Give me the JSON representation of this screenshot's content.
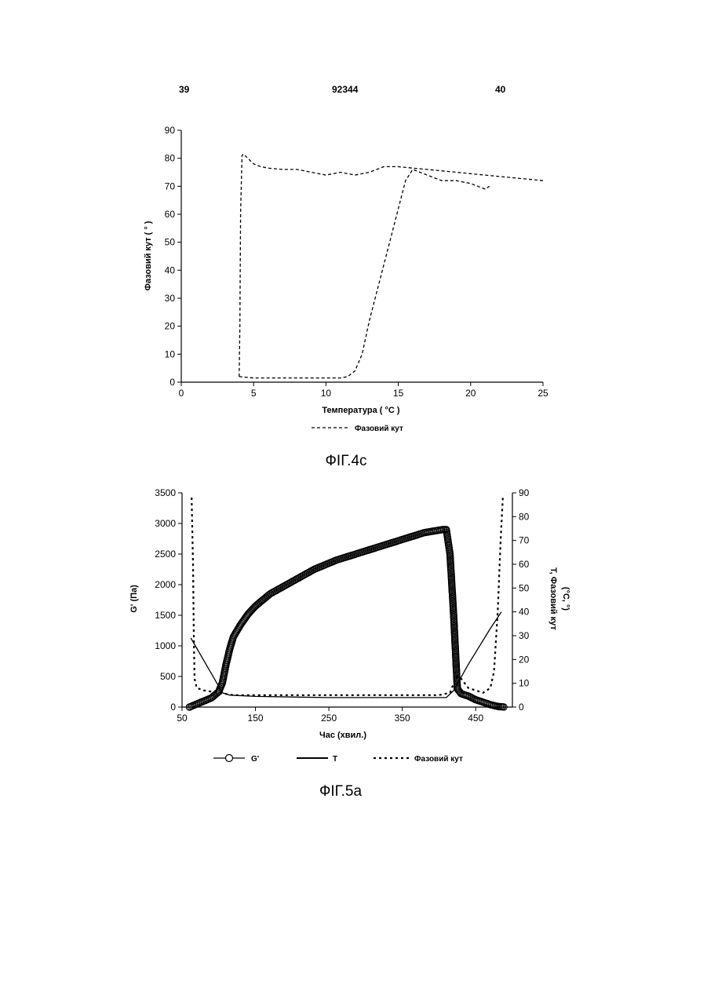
{
  "header": {
    "page_left": "39",
    "patent_number": "92344",
    "page_right": "40"
  },
  "figures": [
    {
      "caption": "ФІГ.4с",
      "legend": [
        "Фазовий кут"
      ],
      "xlabel": "Температура",
      "xunit": "°C",
      "ylabel": "Фазовий кут",
      "yunit": "°"
    },
    {
      "caption": "ФІГ.5а",
      "legend": [
        "G'",
        "T",
        "Фазовий кут"
      ],
      "xlabel": "Час (хвил.)",
      "ylabel_left": "G' (Па)",
      "ylabel_right_1": "T, Фазовий кут",
      "ylabel_right_2": "(°C, °)"
    }
  ],
  "chart_data": [
    {
      "type": "line",
      "xlim": [
        0,
        25
      ],
      "ylim": [
        0,
        90
      ],
      "xticks": [
        0,
        5,
        10,
        15,
        20,
        25
      ],
      "yticks": [
        0,
        10,
        20,
        30,
        40,
        50,
        60,
        70,
        80,
        90
      ],
      "grid": false,
      "legend_position": "bottom",
      "series": [
        {
          "name": "Фазовий кут",
          "style": "dashed",
          "x": [
            4,
            4.05,
            4.1,
            4.2,
            4.3,
            4.6,
            5,
            5.5,
            6,
            7,
            8,
            9,
            10,
            11,
            12,
            13,
            14,
            15,
            16,
            17,
            18,
            19,
            20,
            21,
            22,
            23,
            24,
            25
          ],
          "y": [
            2,
            20,
            60,
            81,
            81.5,
            80,
            78,
            77,
            76.5,
            76,
            76,
            75,
            74,
            75,
            74,
            75,
            77,
            77,
            76.5,
            76,
            75.5,
            75,
            74.5,
            74,
            73.5,
            73,
            72.5,
            72
          ]
        },
        {
          "name": "",
          "style": "dashed",
          "x": [
            4,
            5,
            6,
            8,
            10,
            11,
            11.5,
            12,
            12.5,
            13,
            14,
            15,
            15.5,
            16,
            16.5,
            17,
            18,
            19,
            20,
            21,
            21.3
          ],
          "y": [
            2,
            1.5,
            1.5,
            1.5,
            1.5,
            1.5,
            2,
            4,
            10,
            22,
            42,
            62,
            72,
            76,
            75,
            74,
            72,
            72,
            71,
            69,
            70
          ]
        }
      ]
    },
    {
      "type": "line",
      "xlim": [
        50,
        500
      ],
      "ylim_left": [
        0,
        3500
      ],
      "ylim_right": [
        0,
        90
      ],
      "xticks": [
        50,
        150,
        250,
        350,
        450
      ],
      "yticks_left": [
        0,
        500,
        1000,
        1500,
        2000,
        2500,
        3000,
        3500
      ],
      "yticks_right": [
        0,
        10,
        20,
        30,
        40,
        50,
        60,
        70,
        80,
        90
      ],
      "grid": false,
      "legend_position": "bottom",
      "series": [
        {
          "name": "G'",
          "axis": "left",
          "marker": "open-circle",
          "x": [
            60,
            70,
            80,
            90,
            100,
            105,
            110,
            115,
            120,
            130,
            140,
            150,
            170,
            200,
            230,
            260,
            300,
            340,
            380,
            405,
            410,
            415,
            420,
            425,
            430,
            440,
            450,
            460,
            470,
            480,
            490
          ],
          "y": [
            0,
            50,
            100,
            150,
            250,
            400,
            700,
            950,
            1150,
            1350,
            1520,
            1650,
            1850,
            2050,
            2250,
            2400,
            2550,
            2700,
            2850,
            2900,
            2900,
            2500,
            1500,
            300,
            220,
            180,
            120,
            80,
            40,
            10,
            0
          ]
        },
        {
          "name": "T",
          "axis": "right",
          "style": "solid",
          "x": [
            62,
            105,
            115,
            150,
            250,
            350,
            400,
            410,
            420,
            440,
            470,
            485
          ],
          "y": [
            29,
            6,
            5,
            4.5,
            4,
            4,
            4,
            4,
            7,
            18,
            33,
            40
          ]
        },
        {
          "name": "Фазовий кут",
          "axis": "right",
          "style": "dotted",
          "x": [
            63,
            65,
            66,
            67,
            70,
            80,
            100,
            120,
            200,
            300,
            400,
            415,
            420,
            425,
            430,
            440,
            460,
            470,
            475,
            480,
            484,
            487
          ],
          "y": [
            88,
            60,
            30,
            12,
            8,
            7,
            6,
            5,
            5,
            5,
            5,
            6,
            10,
            13,
            12,
            8,
            6,
            8,
            15,
            40,
            70,
            88
          ]
        }
      ]
    }
  ]
}
